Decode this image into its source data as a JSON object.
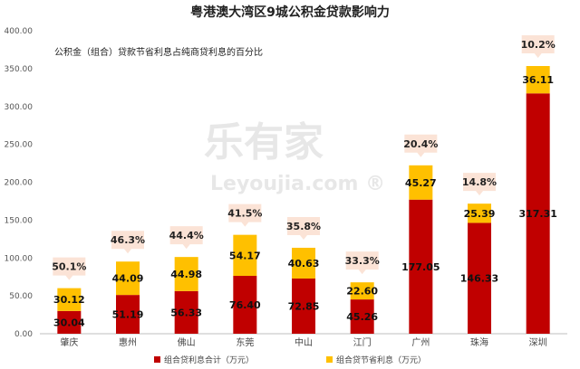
{
  "chart_data": {
    "type": "bar",
    "stacked": true,
    "title": "粤港澳大湾区9城公积金贷款影响力",
    "annotation": "公积金（组合）贷款节省利息占纯商贷利息的百分比",
    "categories": [
      "肇庆",
      "惠州",
      "佛山",
      "东莞",
      "中山",
      "江门",
      "广州",
      "珠海",
      "深圳"
    ],
    "series": [
      {
        "name": "组合贷利息合计（万元）",
        "color": "#c00000",
        "values": [
          30.04,
          51.19,
          56.33,
          76.4,
          72.85,
          45.26,
          177.05,
          146.33,
          317.31
        ]
      },
      {
        "name": "组合贷节省利息（万元）",
        "color": "#ffc000",
        "values": [
          30.12,
          44.09,
          44.98,
          54.17,
          40.63,
          22.6,
          45.27,
          25.39,
          36.11
        ]
      }
    ],
    "percent_labels": [
      "50.1%",
      "46.3%",
      "44.4%",
      "41.5%",
      "35.8%",
      "33.3%",
      "20.4%",
      "14.8%",
      "10.2%"
    ],
    "y_ticks": [
      "0.00",
      "50.00",
      "100.00",
      "150.00",
      "200.00",
      "250.00",
      "300.00",
      "350.00",
      "400.00"
    ],
    "ylim": [
      0,
      400
    ],
    "grid": false,
    "legend_position": "bottom",
    "callout_color": "#fbe3d6",
    "watermark": "乐有家 Leyoujia.com"
  }
}
